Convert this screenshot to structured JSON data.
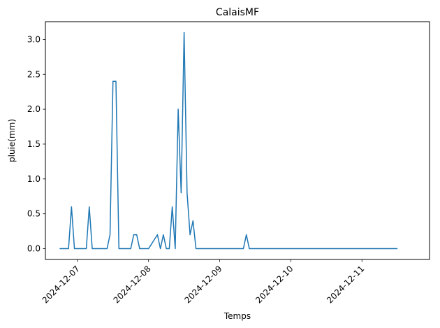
{
  "chart_data": {
    "type": "line",
    "title": "CalaisMF",
    "xlabel": "Temps",
    "ylabel": "pluie(mm)",
    "x_tick_labels": [
      "2024-12-07",
      "2024-12-08",
      "2024-12-09",
      "2024-12-10",
      "2024-12-11"
    ],
    "y_tick_labels": [
      "0.0",
      "0.5",
      "1.0",
      "1.5",
      "2.0",
      "2.5",
      "3.0"
    ],
    "y_ticks": [
      0,
      0.5,
      1.0,
      1.5,
      2.0,
      2.5,
      3.0
    ],
    "xlim": [
      "2024-12-06 13:12",
      "2024-12-11 22:48"
    ],
    "ylim": [
      -0.155,
      3.255
    ],
    "grid": false,
    "line_color": "#1f77b4",
    "series": [
      {
        "x": [
          "2024-12-06 18:00",
          "2024-12-06 21:00",
          "2024-12-06 22:00",
          "2024-12-06 23:00",
          "2024-12-07 00:00",
          "2024-12-07 03:00",
          "2024-12-07 04:00",
          "2024-12-07 05:00",
          "2024-12-07 06:00",
          "2024-12-07 10:00",
          "2024-12-07 11:00",
          "2024-12-07 12:00",
          "2024-12-07 13:00",
          "2024-12-07 14:00",
          "2024-12-07 15:00",
          "2024-12-07 18:00",
          "2024-12-07 19:00",
          "2024-12-07 20:00",
          "2024-12-07 21:00",
          "2024-12-07 22:00",
          "2024-12-08 00:00",
          "2024-12-08 03:00",
          "2024-12-08 04:00",
          "2024-12-08 05:00",
          "2024-12-08 06:00",
          "2024-12-08 07:00",
          "2024-12-08 08:00",
          "2024-12-08 09:00",
          "2024-12-08 10:00",
          "2024-12-08 11:00",
          "2024-12-08 12:00",
          "2024-12-08 13:00",
          "2024-12-08 14:00",
          "2024-12-08 15:00",
          "2024-12-08 16:00",
          "2024-12-08 17:00",
          "2024-12-08 18:00",
          "2024-12-08 19:00",
          "2024-12-09 08:00",
          "2024-12-09 09:00",
          "2024-12-09 10:00",
          "2024-12-11 12:00"
        ],
        "y": [
          0,
          0,
          0.6,
          0,
          0,
          0,
          0.6,
          0,
          0,
          0,
          0.2,
          2.4,
          2.4,
          0,
          0,
          0,
          0.2,
          0.2,
          0,
          0,
          0,
          0.2,
          0,
          0.2,
          0,
          0,
          0.6,
          0,
          2.0,
          0.8,
          3.1,
          0.8,
          0.2,
          0.4,
          0,
          0,
          0,
          0,
          0,
          0.2,
          0,
          0
        ]
      }
    ]
  }
}
